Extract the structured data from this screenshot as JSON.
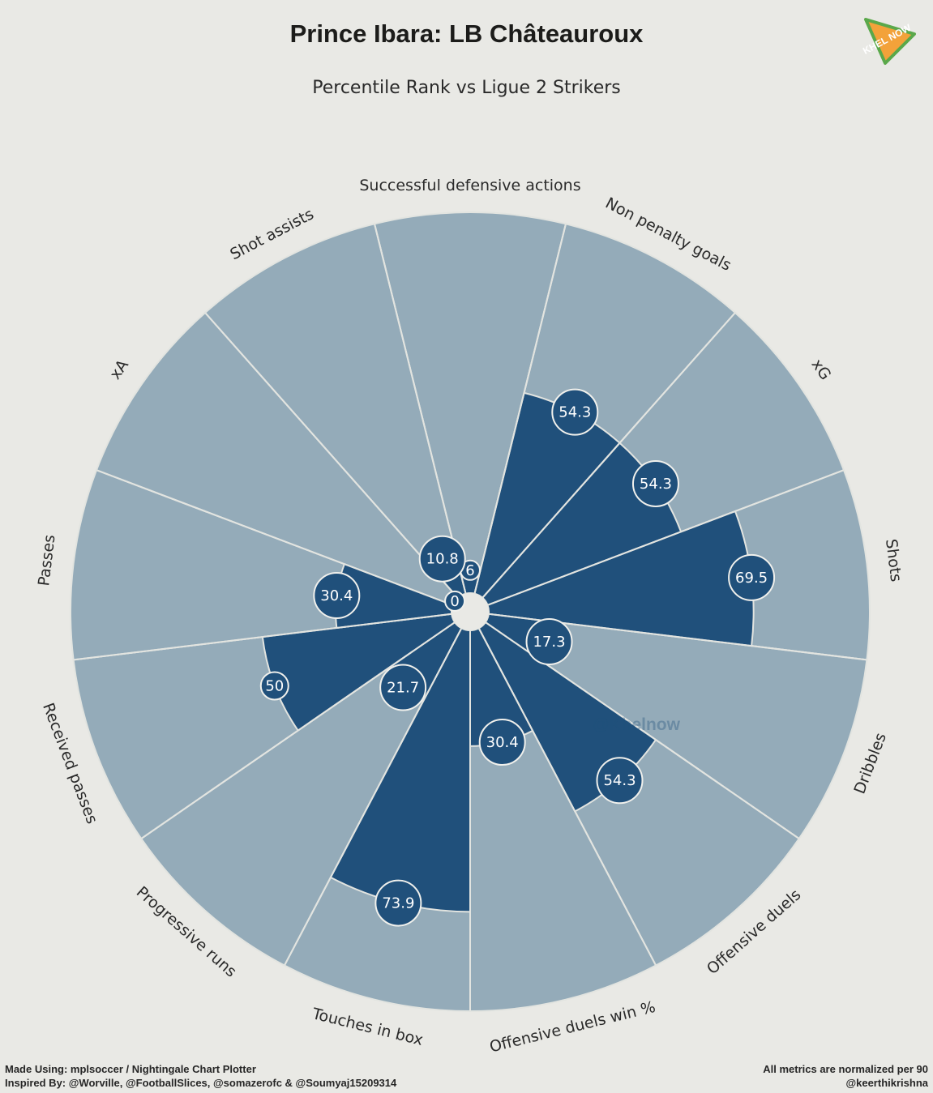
{
  "header": {
    "title": "Prince Ibara: LB Châteauroux",
    "subtitle": "Percentile Rank vs Ligue 2 Strikers"
  },
  "logo": {
    "text": "KHEL NOW",
    "icon": "khel-now-pennant-icon"
  },
  "watermark": "@Khelnow",
  "footer": {
    "left_line1": "Made Using: mplsoccer / Nightingale Chart Plotter",
    "left_line2": "Inspired By: @Worville, @FootballSlices, @somazerofc & @Soumyaj15209314",
    "right_line1": "All metrics are normalized per 90",
    "right_line2": "@keerthikrishna"
  },
  "colors": {
    "background": "#e9e9e5",
    "slice_background": "#94abb9",
    "slice_value": "#20507b",
    "edge": "#e2e4e0",
    "label_text": "#2a2a2a"
  },
  "chart_data": {
    "type": "nightingale",
    "ylim": [
      0,
      100
    ],
    "categories": [
      "Successful defensive actions",
      "Non penalty goals",
      "xG",
      "Shots",
      "Dribbles",
      "Offensive duels",
      "Offensive duels win %",
      "Touches in box",
      "Progressive runs",
      "Received passes",
      "Passes",
      "xA",
      "Shot assists"
    ],
    "values": [
      6,
      54.3,
      54.3,
      69.5,
      17.3,
      54.3,
      30.4,
      73.9,
      21.7,
      50,
      30.4,
      0,
      10.8
    ],
    "value_labels": [
      "6",
      "54.3",
      "54.3",
      "69.5",
      "17.3",
      "54.3",
      "30.4",
      "73.9",
      "21.7",
      "50",
      "30.4",
      "0",
      "10.8"
    ]
  }
}
